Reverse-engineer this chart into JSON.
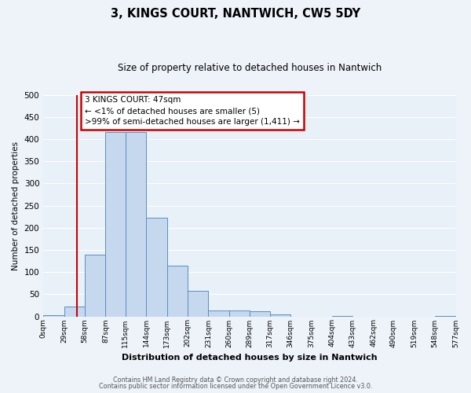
{
  "title": "3, KINGS COURT, NANTWICH, CW5 5DY",
  "subtitle": "Size of property relative to detached houses in Nantwich",
  "xlabel": "Distribution of detached houses by size in Nantwich",
  "ylabel": "Number of detached properties",
  "bar_color": "#c5d8ee",
  "bar_edge_color": "#5b8ec4",
  "background_color": "#e8f0f8",
  "fig_background_color": "#eef3fa",
  "grid_color": "#ffffff",
  "bin_edges": [
    0,
    29,
    58,
    87,
    115,
    144,
    173,
    202,
    231,
    260,
    289,
    317,
    346,
    375,
    404,
    433,
    462,
    490,
    519,
    548,
    577
  ],
  "bin_counts": [
    3,
    22,
    140,
    415,
    415,
    222,
    115,
    57,
    14,
    14,
    12,
    5,
    0,
    0,
    1,
    0,
    0,
    0,
    0,
    1
  ],
  "tick_labels": [
    "0sqm",
    "29sqm",
    "58sqm",
    "87sqm",
    "115sqm",
    "144sqm",
    "173sqm",
    "202sqm",
    "231sqm",
    "260sqm",
    "289sqm",
    "317sqm",
    "346sqm",
    "375sqm",
    "404sqm",
    "433sqm",
    "462sqm",
    "490sqm",
    "519sqm",
    "548sqm",
    "577sqm"
  ],
  "ylim": [
    0,
    500
  ],
  "yticks": [
    0,
    50,
    100,
    150,
    200,
    250,
    300,
    350,
    400,
    450,
    500
  ],
  "vline_x": 47,
  "vline_color": "#cc0000",
  "annotation_line1": "3 KINGS COURT: 47sqm",
  "annotation_line2": "← <1% of detached houses are smaller (5)",
  "annotation_line3": ">99% of semi-detached houses are larger (1,411) →",
  "annotation_box_color": "#cc0000",
  "footer_line1": "Contains HM Land Registry data © Crown copyright and database right 2024.",
  "footer_line2": "Contains public sector information licensed under the Open Government Licence v3.0."
}
